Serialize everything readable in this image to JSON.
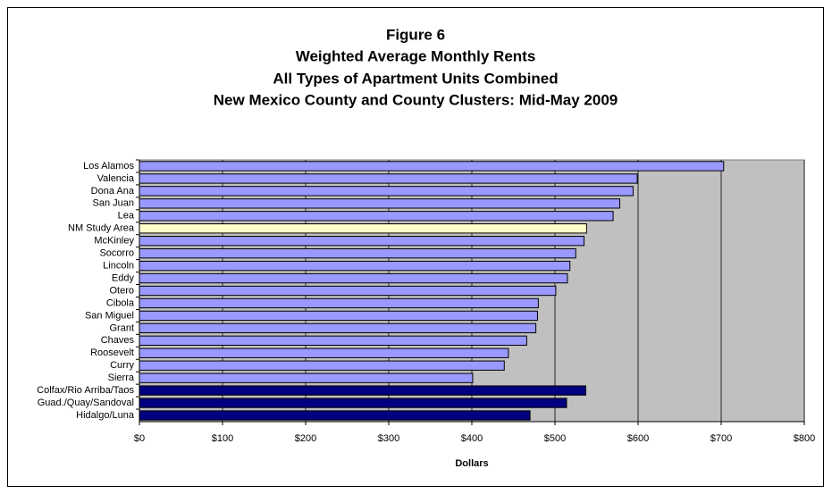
{
  "chart_data": {
    "type": "barh",
    "title": [
      "Figure 6",
      "Weighted Average Monthly Rents",
      "All Types of Apartment Units Combined",
      "New Mexico County and County Clusters: Mid-May 2009"
    ],
    "xlabel": "Dollars",
    "categories": [
      "Los Alamos",
      "Valencia",
      "Dona Ana",
      "San Juan",
      "Lea",
      "NM Study Area",
      "McKinley",
      "Socorro",
      "Lincoln",
      "Eddy",
      "Otero",
      "Cibola",
      "San Miguel",
      "Grant",
      "Chaves",
      "Roosevelt",
      "Curry",
      "Sierra",
      "Colfax/Rio Arriba/Taos",
      "Guad./Quay/Sandoval",
      "Hidalgo/Luna"
    ],
    "values": [
      703,
      599,
      594,
      578,
      570,
      538,
      535,
      525,
      518,
      515,
      501,
      480,
      479,
      477,
      466,
      444,
      439,
      401,
      537,
      514,
      470
    ],
    "colors": [
      "#9999ff",
      "#9999ff",
      "#9999ff",
      "#9999ff",
      "#9999ff",
      "#ffffcc",
      "#9999ff",
      "#9999ff",
      "#9999ff",
      "#9999ff",
      "#9999ff",
      "#9999ff",
      "#9999ff",
      "#9999ff",
      "#9999ff",
      "#9999ff",
      "#9999ff",
      "#9999ff",
      "#000080",
      "#000080",
      "#000080"
    ],
    "xlim": [
      0,
      800
    ],
    "xticks": [
      {
        "value": 0,
        "label": "$0"
      },
      {
        "value": 100,
        "label": "$100"
      },
      {
        "value": 200,
        "label": "$200"
      },
      {
        "value": 300,
        "label": "$300"
      },
      {
        "value": 400,
        "label": "$400"
      },
      {
        "value": 500,
        "label": "$500"
      },
      {
        "value": 600,
        "label": "$600"
      },
      {
        "value": 700,
        "label": "$700"
      },
      {
        "value": 800,
        "label": "$800"
      }
    ],
    "grid": true,
    "plot_background": "#c0c0c0"
  }
}
